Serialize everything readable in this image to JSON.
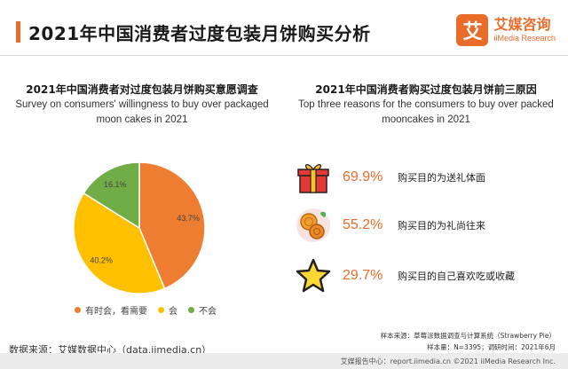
{
  "page": {
    "title": "2021年中国消费者过度包装月饼购买分析"
  },
  "brand": {
    "mark": "艾",
    "name": "艾媒咨询",
    "sub": "iiMedia Research"
  },
  "colors": {
    "accent": "#ea6c2a",
    "orange": "#ed7d31",
    "yellow": "#ffc000",
    "green": "#70ad47"
  },
  "chart_data": [
    {
      "type": "pie",
      "title": "2021年中国消费者对过度包装月饼购买意愿调查",
      "subtitle": "Survey on consumers' willingness to buy over packaged moon cakes in 2021",
      "slices": [
        {
          "name": "有时会，看需要",
          "value": 43.7,
          "label": "43.7%",
          "color": "#ed7d31"
        },
        {
          "name": "会",
          "value": 40.2,
          "label": "40.2%",
          "color": "#ffc000"
        },
        {
          "name": "不会",
          "value": 16.1,
          "label": "16.1%",
          "color": "#70ad47"
        }
      ],
      "legend_placement": "bottom"
    },
    {
      "type": "table",
      "title": "2021年中国消费者购买过度包装月饼前三原因",
      "subtitle": "Top three reasons for the consumers to buy over packed mooncakes in 2021",
      "rows": [
        {
          "value": 69.9,
          "label": "69.9%",
          "text": "购买目的为送礼体面",
          "icon": "gift-icon"
        },
        {
          "value": 55.2,
          "label": "55.2%",
          "text": "购买目的为礼尚往来",
          "icon": "mooncake-icon"
        },
        {
          "value": 29.7,
          "label": "29.7%",
          "text": "购买目的自己喜欢吃或收藏",
          "icon": "star-icon"
        }
      ]
    }
  ],
  "footer": {
    "source": "数据来源：艾媒数据中心（data.iimedia.cn）",
    "note1": "样本来源：草莓派数据调查与计算系统（Strawberry Pie）",
    "note2": "样本量：N=3395；调研时间：2021年6月",
    "copyright": "艾媒报告中心：report.iimedia.cn    ©2021  iiMedia Research  Inc."
  }
}
